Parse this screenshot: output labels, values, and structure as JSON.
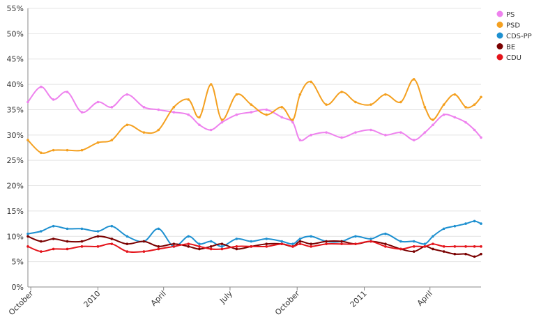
{
  "chart_data": {
    "type": "line",
    "title": "",
    "xlabel": "",
    "ylabel": "",
    "ylim": [
      0,
      55
    ],
    "grid": true,
    "legend_position": "top-right",
    "y_ticks": [
      "0%",
      "5%",
      "10%",
      "15%",
      "20%",
      "25%",
      "30%",
      "35%",
      "40%",
      "45%",
      "50%",
      "55%"
    ],
    "y_tick_values": [
      0,
      5,
      10,
      15,
      20,
      25,
      30,
      35,
      40,
      45,
      50,
      55
    ],
    "x_ticks": [
      "October",
      "2010",
      "April",
      "July",
      "October",
      "2011",
      "April"
    ],
    "x_tick_values": [
      "2009-10-01",
      "2010-01-01",
      "2010-04-01",
      "2010-07-01",
      "2010-10-01",
      "2011-01-01",
      "2011-04-01"
    ],
    "x_range": [
      "2009-09-27",
      "2011-06-10"
    ],
    "series": [
      {
        "name": "PS",
        "color": "#EE82EE",
        "x": [
          "2009-09-27",
          "2009-10-15",
          "2009-11-01",
          "2009-11-20",
          "2009-12-10",
          "2010-01-01",
          "2010-01-20",
          "2010-02-10",
          "2010-03-05",
          "2010-03-25",
          "2010-04-15",
          "2010-05-05",
          "2010-05-20",
          "2010-06-05",
          "2010-06-20",
          "2010-07-10",
          "2010-07-30",
          "2010-08-20",
          "2010-09-10",
          "2010-09-25",
          "2010-10-05",
          "2010-10-20",
          "2010-11-10",
          "2010-12-01",
          "2010-12-20",
          "2011-01-10",
          "2011-01-30",
          "2011-02-20",
          "2011-03-10",
          "2011-03-25",
          "2011-04-05",
          "2011-04-20",
          "2011-05-05",
          "2011-05-20",
          "2011-06-01",
          "2011-06-10"
        ],
        "values": [
          36.5,
          39.5,
          37,
          38.5,
          34.5,
          36.5,
          35.5,
          38,
          35.5,
          35,
          34.5,
          34,
          32,
          31,
          32.5,
          34,
          34.5,
          35,
          33.5,
          32.5,
          29,
          30,
          30.5,
          29.5,
          30.5,
          31,
          30,
          30.5,
          29,
          30.5,
          32,
          34,
          33.5,
          32.5,
          31,
          29.5
        ]
      },
      {
        "name": "PSD",
        "color": "#F4A020",
        "x": [
          "2009-09-27",
          "2009-10-15",
          "2009-11-01",
          "2009-11-20",
          "2009-12-10",
          "2010-01-01",
          "2010-01-20",
          "2010-02-10",
          "2010-03-05",
          "2010-03-25",
          "2010-04-15",
          "2010-05-05",
          "2010-05-20",
          "2010-06-05",
          "2010-06-20",
          "2010-07-10",
          "2010-07-30",
          "2010-08-20",
          "2010-09-10",
          "2010-09-25",
          "2010-10-05",
          "2010-10-20",
          "2010-11-10",
          "2010-12-01",
          "2010-12-20",
          "2011-01-10",
          "2011-01-30",
          "2011-02-20",
          "2011-03-10",
          "2011-03-25",
          "2011-04-05",
          "2011-04-20",
          "2011-05-05",
          "2011-05-20",
          "2011-06-01",
          "2011-06-10"
        ],
        "values": [
          29,
          26.5,
          27,
          27,
          27,
          28.5,
          29,
          32,
          30.5,
          31,
          35.5,
          37,
          33.5,
          40,
          33,
          38,
          36,
          34,
          35.5,
          33,
          38,
          40.5,
          36,
          38.5,
          36.5,
          36,
          38,
          36.5,
          41,
          35.5,
          33,
          36,
          38,
          35.5,
          36,
          37.5
        ]
      },
      {
        "name": "CDS-PP",
        "color": "#1E90D0",
        "x": [
          "2009-09-27",
          "2009-10-15",
          "2009-11-01",
          "2009-11-20",
          "2009-12-10",
          "2010-01-01",
          "2010-01-20",
          "2010-02-10",
          "2010-03-05",
          "2010-03-25",
          "2010-04-15",
          "2010-05-05",
          "2010-05-20",
          "2010-06-05",
          "2010-06-20",
          "2010-07-10",
          "2010-07-30",
          "2010-08-20",
          "2010-09-10",
          "2010-09-25",
          "2010-10-05",
          "2010-10-20",
          "2010-11-10",
          "2010-12-01",
          "2010-12-20",
          "2011-01-10",
          "2011-01-30",
          "2011-02-20",
          "2011-03-10",
          "2011-03-25",
          "2011-04-05",
          "2011-04-20",
          "2011-05-05",
          "2011-05-20",
          "2011-06-01",
          "2011-06-10"
        ],
        "values": [
          10.5,
          11,
          12,
          11.5,
          11.5,
          11,
          12,
          10,
          9,
          11.5,
          8,
          10,
          8.5,
          9,
          8,
          9.5,
          9,
          9.5,
          9,
          8.5,
          9.5,
          10,
          9,
          9,
          10,
          9.5,
          10.5,
          9,
          9,
          8.5,
          10,
          11.5,
          12,
          12.5,
          13,
          12.5
        ]
      },
      {
        "name": "BE",
        "color": "#7A0000",
        "x": [
          "2009-09-27",
          "2009-10-15",
          "2009-11-01",
          "2009-11-20",
          "2009-12-10",
          "2010-01-01",
          "2010-01-20",
          "2010-02-10",
          "2010-03-05",
          "2010-03-25",
          "2010-04-15",
          "2010-05-05",
          "2010-05-20",
          "2010-06-05",
          "2010-06-20",
          "2010-07-10",
          "2010-07-30",
          "2010-08-20",
          "2010-09-10",
          "2010-09-25",
          "2010-10-05",
          "2010-10-20",
          "2010-11-10",
          "2010-12-01",
          "2010-12-20",
          "2011-01-10",
          "2011-01-30",
          "2011-02-20",
          "2011-03-10",
          "2011-03-25",
          "2011-04-05",
          "2011-04-20",
          "2011-05-05",
          "2011-05-20",
          "2011-06-01",
          "2011-06-10"
        ],
        "values": [
          10,
          9,
          9.5,
          9,
          9,
          10,
          9.5,
          8.5,
          9,
          8,
          8.5,
          8,
          7.5,
          8,
          8.5,
          7.5,
          8,
          8.5,
          8.5,
          8,
          9,
          8.5,
          9,
          9,
          8.5,
          9,
          8.5,
          7.5,
          7,
          8,
          7.5,
          7,
          6.5,
          6.5,
          6,
          6.5
        ]
      },
      {
        "name": "CDU",
        "color": "#E4141B",
        "x": [
          "2009-09-27",
          "2009-10-15",
          "2009-11-01",
          "2009-11-20",
          "2009-12-10",
          "2010-01-01",
          "2010-01-20",
          "2010-02-10",
          "2010-03-05",
          "2010-03-25",
          "2010-04-15",
          "2010-05-05",
          "2010-05-20",
          "2010-06-05",
          "2010-06-20",
          "2010-07-10",
          "2010-07-30",
          "2010-08-20",
          "2010-09-10",
          "2010-09-25",
          "2010-10-05",
          "2010-10-20",
          "2010-11-10",
          "2010-12-01",
          "2010-12-20",
          "2011-01-10",
          "2011-01-30",
          "2011-02-20",
          "2011-03-10",
          "2011-03-25",
          "2011-04-05",
          "2011-04-20",
          "2011-05-05",
          "2011-05-20",
          "2011-06-01",
          "2011-06-10"
        ],
        "values": [
          8,
          7,
          7.5,
          7.5,
          8,
          8,
          8.5,
          7,
          7,
          7.5,
          8,
          8.5,
          8,
          7.5,
          7.5,
          8,
          8,
          8,
          8.5,
          8,
          8.5,
          8,
          8.5,
          8.5,
          8.5,
          9,
          8,
          7.5,
          8,
          8,
          8.5,
          8,
          8,
          8,
          8,
          8
        ]
      }
    ]
  }
}
